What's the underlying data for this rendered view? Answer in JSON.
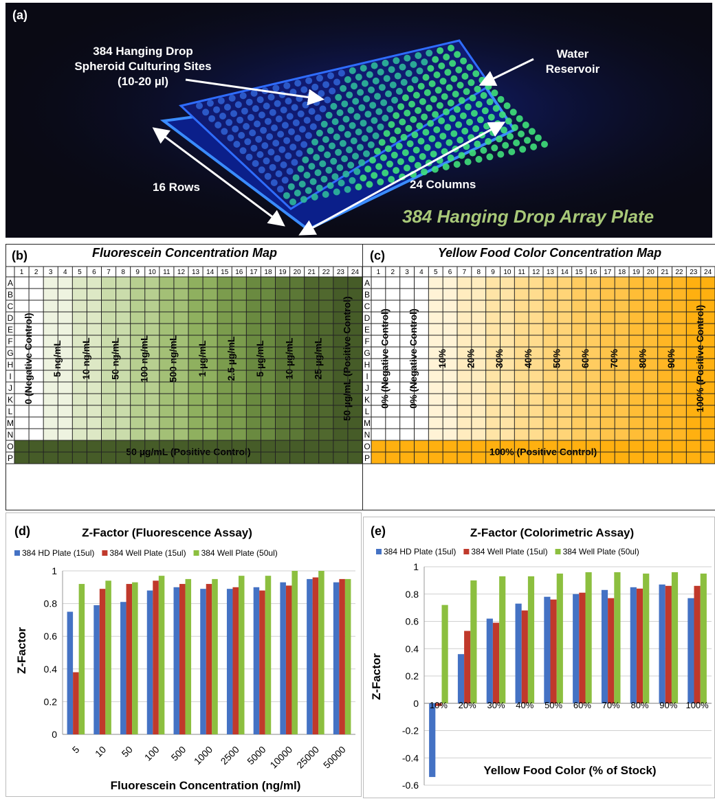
{
  "panel_a": {
    "letter": "(a)",
    "sites_label": [
      "384 Hanging Drop",
      "Spheroid Culturing Sites",
      "(10-20 µl)"
    ],
    "water_label": [
      "Water",
      "Reservoir"
    ],
    "rows_label": "16 Rows",
    "cols_label": "24 Columns",
    "title": "384 Hanging Drop Array Plate"
  },
  "map_b": {
    "letter": "(b)",
    "title": "Fluorescein Concentration Map",
    "row_labels": [
      "A",
      "B",
      "C",
      "D",
      "E",
      "F",
      "G",
      "H",
      "I",
      "J",
      "K",
      "L",
      "M",
      "N",
      "O",
      "P"
    ],
    "col_labels": [
      "1",
      "2",
      "3",
      "4",
      "5",
      "6",
      "7",
      "8",
      "9",
      "10",
      "11",
      "12",
      "13",
      "14",
      "15",
      "16",
      "17",
      "18",
      "19",
      "20",
      "21",
      "22",
      "23",
      "24"
    ],
    "column_groups": [
      {
        "text": "0 (Negative Control)",
        "color": "#ffffff"
      },
      {
        "text": "5 ng/mL",
        "color": "#eef3e0"
      },
      {
        "text": "10 ng/mL",
        "color": "#dde8c5"
      },
      {
        "text": "50 ng/mL",
        "color": "#cadcab"
      },
      {
        "text": "100 ng/mL",
        "color": "#b7cf90"
      },
      {
        "text": "500 ng/mL",
        "color": "#a3c076"
      },
      {
        "text": "1 µg/mL",
        "color": "#8fb05f"
      },
      {
        "text": "2.5 µg/mL",
        "color": "#7b9c4d"
      },
      {
        "text": "5 µg/mL",
        "color": "#6a8a40"
      },
      {
        "text": "10 µg/mL",
        "color": "#5c7836"
      },
      {
        "text": "25 µg/mL",
        "color": "#50682e"
      },
      {
        "text": "50 µg/mL (Positive Control)",
        "color": "#465c28"
      }
    ],
    "bottom_label": "50 µg/mL (Positive Control)",
    "bottom_color": "#465c28"
  },
  "map_c": {
    "letter": "(c)",
    "title": "Yellow Food Color Concentration Map",
    "row_labels": [
      "A",
      "B",
      "C",
      "D",
      "E",
      "F",
      "G",
      "H",
      "I",
      "J",
      "K",
      "L",
      "M",
      "N",
      "O",
      "P"
    ],
    "col_labels": [
      "1",
      "2",
      "3",
      "4",
      "5",
      "6",
      "7",
      "8",
      "9",
      "10",
      "11",
      "12",
      "13",
      "14",
      "15",
      "16",
      "17",
      "18",
      "19",
      "20",
      "21",
      "22",
      "23",
      "24"
    ],
    "column_groups": [
      {
        "text": "0% (Negative Control)",
        "color": "#ffffff"
      },
      {
        "text": "0% (Negative Control)",
        "color": "#ffffff"
      },
      {
        "text": "10%",
        "color": "#fff3d6"
      },
      {
        "text": "20%",
        "color": "#ffecbf"
      },
      {
        "text": "30%",
        "color": "#ffe4a6"
      },
      {
        "text": "40%",
        "color": "#ffdc8e"
      },
      {
        "text": "50%",
        "color": "#ffd477"
      },
      {
        "text": "60%",
        "color": "#ffcc60"
      },
      {
        "text": "70%",
        "color": "#ffc44a"
      },
      {
        "text": "80%",
        "color": "#ffbd36"
      },
      {
        "text": "90%",
        "color": "#ffb624"
      },
      {
        "text": "100% (Positive Control)",
        "color": "#ffb010"
      }
    ],
    "bottom_label": "100% (Positive Control)",
    "bottom_color": "#ffb010"
  },
  "chart_data": [
    {
      "type": "bar",
      "letter": "(d)",
      "title": "Z-Factor (Fluorescence Assay)",
      "xlabel": "Fluorescein Concentration (ng/ml)",
      "ylabel": "Z-Factor",
      "ylim": [
        0,
        1
      ],
      "yticks": [
        "0",
        "0.2",
        "0.4",
        "0.6",
        "0.8",
        "1"
      ],
      "grid": true,
      "legend": "top",
      "categories": [
        "5",
        "10",
        "50",
        "100",
        "500",
        "1000",
        "2500",
        "5000",
        "10000",
        "25000",
        "50000"
      ],
      "series": [
        {
          "name": "384 HD Plate (15ul)",
          "color": "#4472c4",
          "values": [
            0.75,
            0.79,
            0.81,
            0.88,
            0.9,
            0.89,
            0.89,
            0.9,
            0.93,
            0.95,
            0.93
          ]
        },
        {
          "name": "384 Well Plate (15ul)",
          "color": "#c0392b",
          "values": [
            0.38,
            0.89,
            0.92,
            0.94,
            0.92,
            0.92,
            0.9,
            0.88,
            0.91,
            0.96,
            0.95
          ]
        },
        {
          "name": "384 Well Plate (50ul)",
          "color": "#8cbf3f",
          "values": [
            0.92,
            0.94,
            0.93,
            0.97,
            0.95,
            0.95,
            0.97,
            0.97,
            1.0,
            1.0,
            0.95
          ]
        }
      ]
    },
    {
      "type": "bar",
      "letter": "(e)",
      "title": "Z-Factor (Colorimetric Assay)",
      "xlabel": "Yellow Food Color (% of Stock)",
      "ylabel": "Z-Factor",
      "ylim": [
        -0.6,
        1
      ],
      "yticks": [
        "-0.6",
        "-0.4",
        "-0.2",
        "0",
        "0.2",
        "0.4",
        "0.6",
        "0.8",
        "1"
      ],
      "grid": true,
      "legend": "top",
      "categories": [
        "10%",
        "20%",
        "30%",
        "40%",
        "50%",
        "60%",
        "70%",
        "80%",
        "90%",
        "100%"
      ],
      "series": [
        {
          "name": "384 HD Plate (15ul)",
          "color": "#4472c4",
          "values": [
            -0.54,
            0.36,
            0.62,
            0.73,
            0.78,
            0.8,
            0.83,
            0.85,
            0.87,
            0.77
          ]
        },
        {
          "name": "384 Well Plate (15ul)",
          "color": "#c0392b",
          "values": [
            -0.02,
            0.53,
            0.59,
            0.68,
            0.76,
            0.81,
            0.77,
            0.84,
            0.86,
            0.86
          ]
        },
        {
          "name": "384 Well Plate (50ul)",
          "color": "#8cbf3f",
          "values": [
            0.72,
            0.9,
            0.93,
            0.93,
            0.95,
            0.96,
            0.96,
            0.95,
            0.96,
            0.95
          ]
        }
      ]
    }
  ]
}
